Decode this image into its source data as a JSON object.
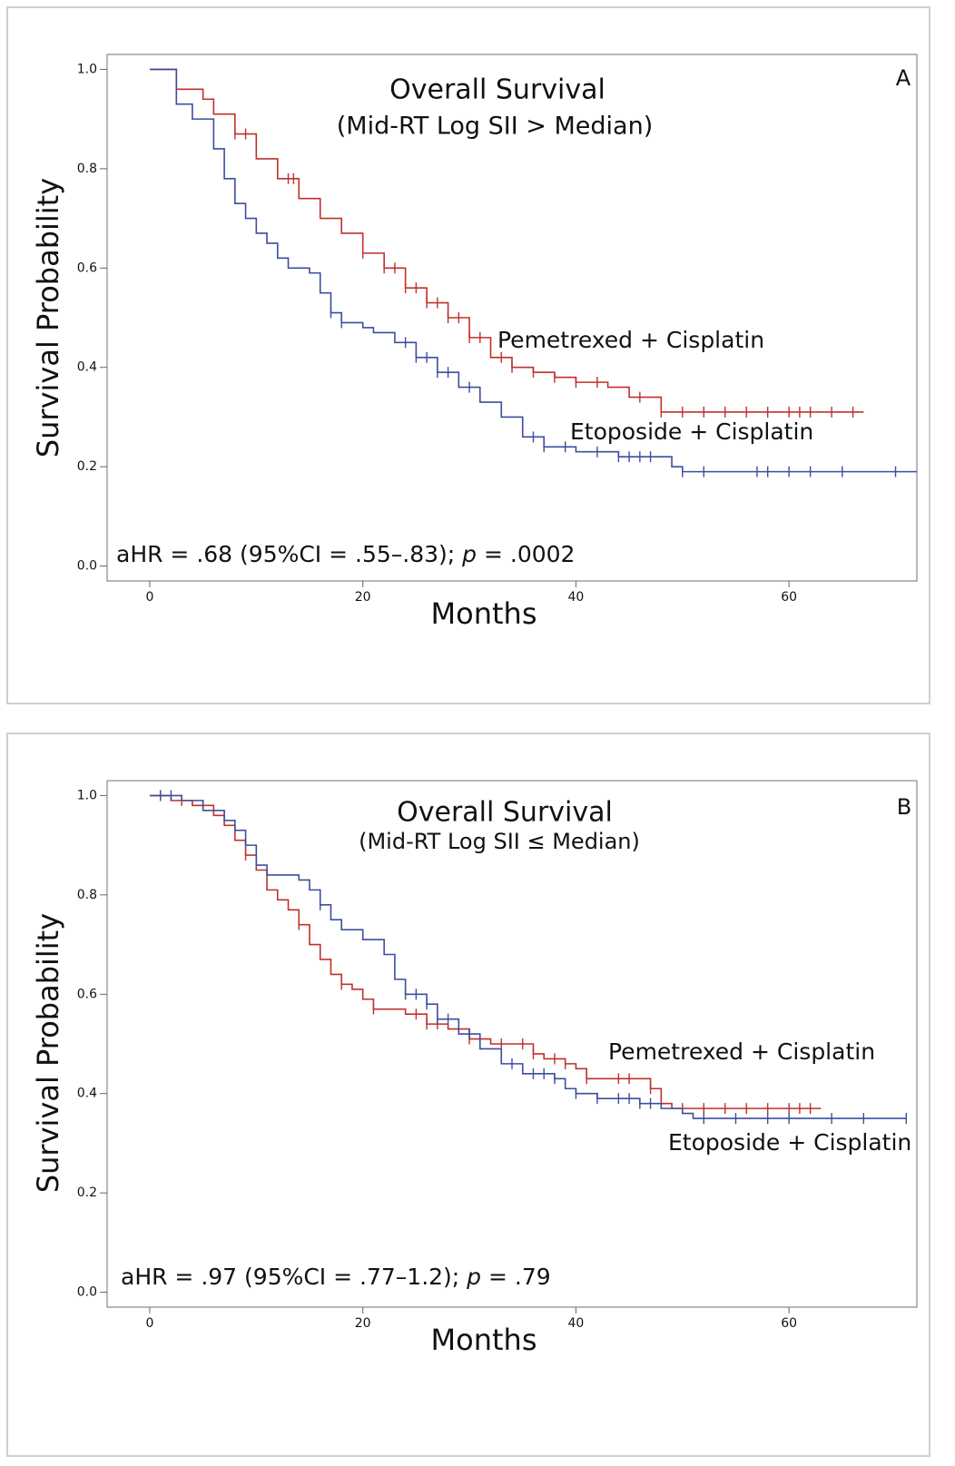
{
  "chart_data": [
    {
      "type": "km",
      "title": "Overall Survival",
      "subtitle": "(Mid-RT Log SII > Median)",
      "panel": "A",
      "x_label": "Months",
      "y_label": "Survival Probability",
      "annotation": [
        "aHR = .68 (95%CI = .55–.83); ",
        "p",
        " = .0002"
      ],
      "xlim": [
        -4,
        72
      ],
      "ylim": [
        -0.03,
        1.03
      ],
      "xticks": [
        0,
        20,
        40,
        60
      ],
      "yticks": [
        {
          "value": 0,
          "label": "0.0"
        },
        0.2,
        0.4,
        0.6,
        0.8,
        {
          "value": 1,
          "label": "1.0"
        }
      ],
      "series": [
        {
          "name": "Pemetrexed + Cisplatin",
          "color": "#c0302b",
          "x": [
            0,
            2.5,
            5,
            6,
            8,
            10,
            12,
            14,
            16,
            18,
            20,
            22,
            24,
            26,
            28,
            30,
            32,
            34,
            36,
            38,
            40,
            43,
            45,
            48,
            67
          ],
          "values": [
            1.0,
            0.96,
            0.94,
            0.91,
            0.87,
            0.82,
            0.78,
            0.74,
            0.7,
            0.67,
            0.63,
            0.6,
            0.56,
            0.53,
            0.5,
            0.46,
            0.42,
            0.4,
            0.39,
            0.38,
            0.37,
            0.36,
            0.34,
            0.31,
            0.31
          ],
          "censored": [
            8,
            9,
            13,
            13.5,
            20,
            22,
            23,
            24,
            25,
            26,
            27,
            28,
            29,
            30,
            31,
            33,
            34,
            36,
            38,
            40,
            42,
            46,
            48,
            50,
            52,
            54,
            56,
            58,
            60,
            61,
            62,
            64,
            66
          ]
        },
        {
          "name": "Etoposide + Cisplatin",
          "color": "#3a4f9e",
          "x": [
            0,
            2.5,
            4,
            6,
            7,
            8,
            9,
            10,
            11,
            12,
            13,
            15,
            16,
            17,
            18,
            20,
            21,
            23,
            25,
            27,
            29,
            31,
            33,
            35,
            37,
            40,
            44,
            49,
            50,
            72
          ],
          "values": [
            1.0,
            0.93,
            0.9,
            0.84,
            0.78,
            0.73,
            0.7,
            0.67,
            0.65,
            0.62,
            0.6,
            0.59,
            0.55,
            0.51,
            0.49,
            0.48,
            0.47,
            0.45,
            0.42,
            0.39,
            0.36,
            0.33,
            0.3,
            0.26,
            0.24,
            0.23,
            0.22,
            0.2,
            0.19,
            0.19
          ],
          "censored": [
            17,
            18,
            24,
            25,
            26,
            27,
            28,
            30,
            36,
            37,
            39,
            42,
            44,
            45,
            46,
            47,
            50,
            52,
            57,
            58,
            60,
            62,
            65,
            70
          ]
        }
      ]
    },
    {
      "type": "km",
      "title": "Overall Survival",
      "subtitle": "(Mid-RT Log SII ≤ Median)",
      "panel": "B",
      "x_label": "Months",
      "y_label": "Survival Probability",
      "annotation": [
        "aHR = .97 (95%CI = .77–1.2); ",
        "p",
        " = .79"
      ],
      "xlim": [
        -4,
        72
      ],
      "ylim": [
        -0.03,
        1.03
      ],
      "xticks": [
        0,
        20,
        40,
        60
      ],
      "yticks": [
        {
          "value": 0,
          "label": "0.0"
        },
        0.2,
        0.4,
        0.6,
        0.8,
        {
          "value": 1,
          "label": "1.0"
        }
      ],
      "series": [
        {
          "name": "Pemetrexed + Cisplatin",
          "color": "#c0302b",
          "x": [
            0,
            2,
            4,
            6,
            7,
            8,
            9,
            10,
            11,
            12,
            13,
            14,
            15,
            16,
            17,
            18,
            19,
            20,
            21,
            24,
            26,
            28,
            30,
            32,
            36,
            37,
            39,
            40,
            41,
            47,
            48,
            49,
            63
          ],
          "values": [
            1.0,
            0.99,
            0.98,
            0.96,
            0.94,
            0.91,
            0.88,
            0.85,
            0.81,
            0.79,
            0.77,
            0.74,
            0.7,
            0.67,
            0.64,
            0.62,
            0.61,
            0.59,
            0.57,
            0.56,
            0.54,
            0.53,
            0.51,
            0.5,
            0.48,
            0.47,
            0.46,
            0.45,
            0.43,
            0.41,
            0.38,
            0.37,
            0.37
          ],
          "censored": [
            1,
            3,
            5,
            9,
            14,
            18,
            21,
            25,
            26,
            27,
            29,
            30,
            33,
            35,
            36,
            38,
            39,
            41,
            44,
            45,
            47,
            50,
            52,
            54,
            56,
            58,
            60,
            61,
            62
          ]
        },
        {
          "name": "Etoposide + Cisplatin",
          "color": "#3a4f9e",
          "x": [
            0,
            3,
            5,
            7,
            8,
            9,
            10,
            11,
            14,
            15,
            16,
            17,
            18,
            20,
            22,
            23,
            24,
            26,
            27,
            29,
            31,
            33,
            35,
            38,
            39,
            40,
            42,
            46,
            48,
            50,
            51,
            71
          ],
          "values": [
            1.0,
            0.99,
            0.97,
            0.95,
            0.93,
            0.9,
            0.86,
            0.84,
            0.83,
            0.81,
            0.78,
            0.75,
            0.73,
            0.71,
            0.68,
            0.63,
            0.6,
            0.58,
            0.55,
            0.52,
            0.49,
            0.46,
            0.44,
            0.43,
            0.41,
            0.4,
            0.39,
            0.38,
            0.37,
            0.36,
            0.35,
            0.35
          ],
          "censored": [
            1,
            2,
            16,
            24,
            25,
            26,
            27,
            28,
            30,
            34,
            36,
            37,
            38,
            40,
            42,
            44,
            45,
            46,
            47,
            52,
            55,
            58,
            60,
            64,
            67,
            71
          ]
        }
      ]
    }
  ]
}
